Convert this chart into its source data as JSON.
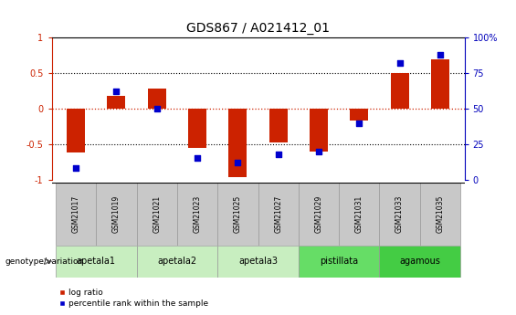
{
  "title": "GDS867 / A021412_01",
  "samples": [
    "GSM21017",
    "GSM21019",
    "GSM21021",
    "GSM21023",
    "GSM21025",
    "GSM21027",
    "GSM21029",
    "GSM21031",
    "GSM21033",
    "GSM21035"
  ],
  "log_ratio": [
    -0.62,
    0.18,
    0.28,
    -0.55,
    -0.97,
    -0.47,
    -0.6,
    -0.17,
    0.5,
    0.7
  ],
  "percentile_rank": [
    8,
    62,
    50,
    15,
    12,
    18,
    20,
    40,
    82,
    88
  ],
  "groups": [
    {
      "label": "apetala1",
      "samples": [
        0,
        1
      ],
      "color": "#c8eec0"
    },
    {
      "label": "apetala2",
      "samples": [
        2,
        3
      ],
      "color": "#c8eec0"
    },
    {
      "label": "apetala3",
      "samples": [
        4,
        5
      ],
      "color": "#c8eec0"
    },
    {
      "label": "pistillata",
      "samples": [
        6,
        7
      ],
      "color": "#66dd66"
    },
    {
      "label": "agamous",
      "samples": [
        8,
        9
      ],
      "color": "#44cc44"
    }
  ],
  "bar_color": "#cc2200",
  "scatter_color": "#0000cc",
  "background_color": "#ffffff",
  "sample_header_color": "#c8c8c8"
}
